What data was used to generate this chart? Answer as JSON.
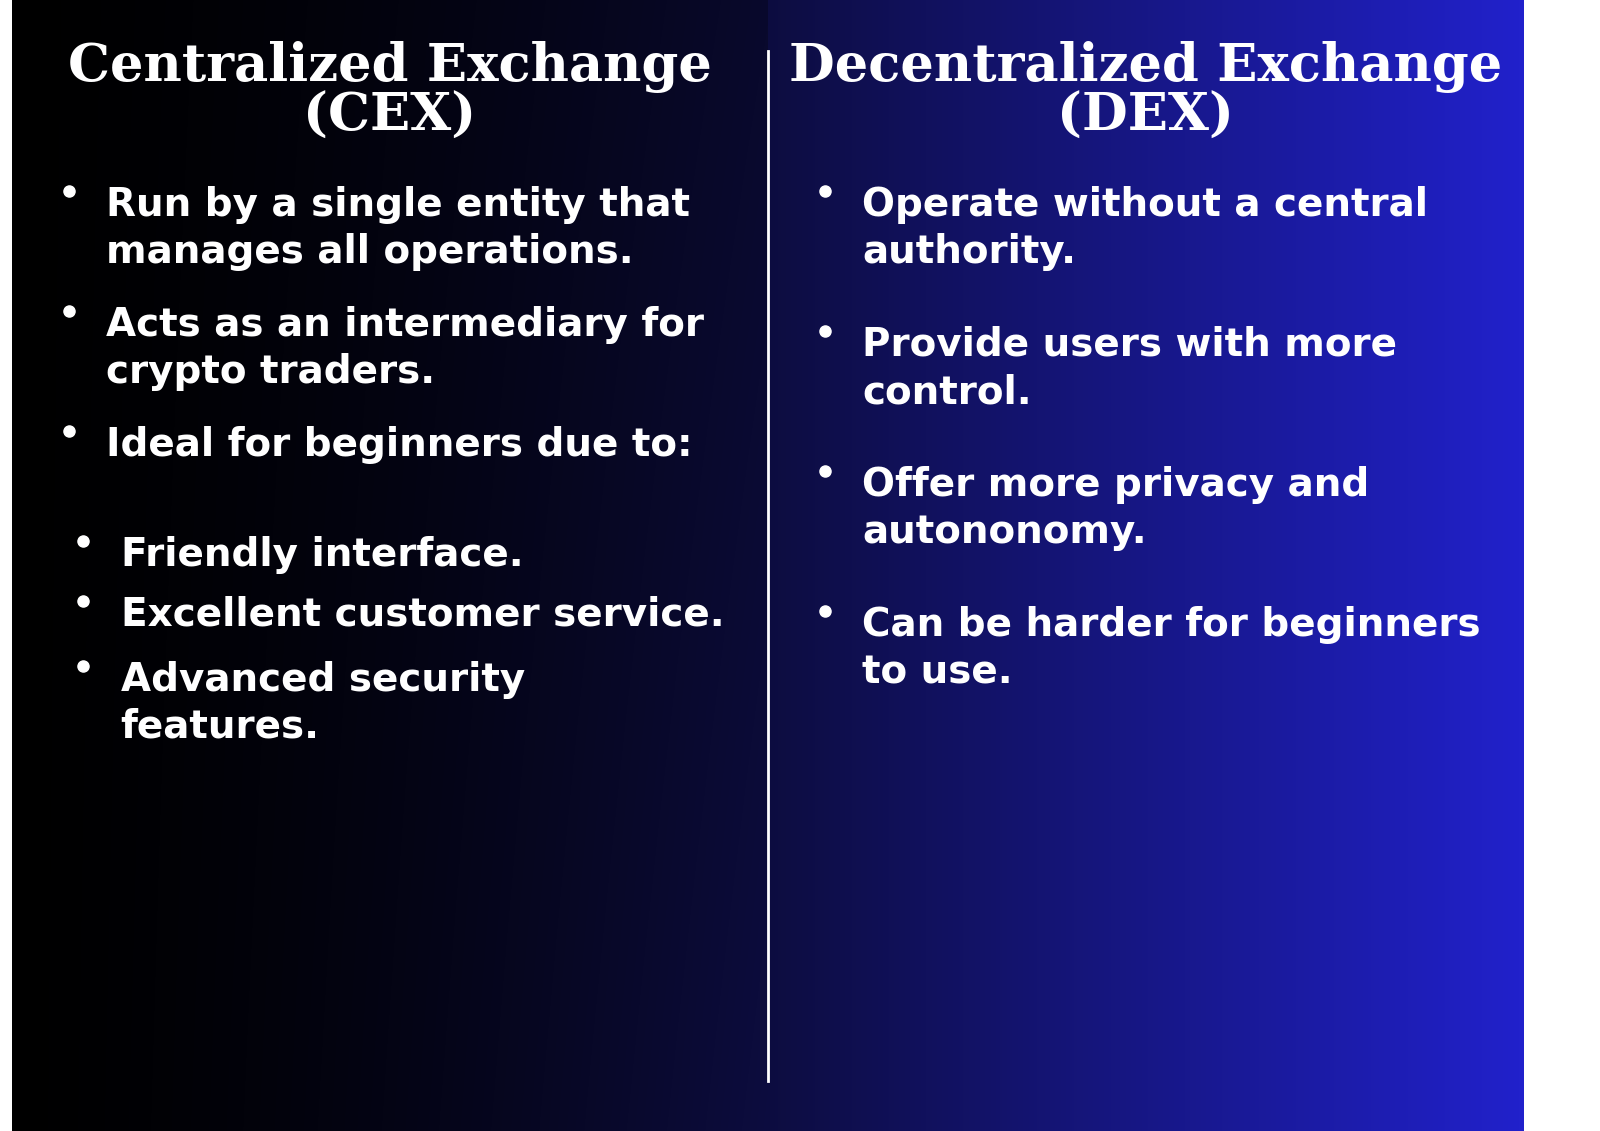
{
  "left_title_line1": "Centralized Exchange",
  "left_title_line2": "(CEX)",
  "right_title_line1": "Decentralized Exchange",
  "right_title_line2": "(DEX)",
  "left_bullets": [
    "Run by a single entity that\nmanages all operations.",
    "Acts as an intermediary for\ncrypto traders.",
    "Ideal for beginners due to:",
    "Friendly interface.",
    "Excellent customer service.",
    "Advanced security\nfeatures."
  ],
  "right_bullets": [
    "Operate without a central\nauthority.",
    "Provide users with more\ncontrol.",
    "Offer more privacy and\nautononomy.",
    "Can be harder for beginners\nto use."
  ],
  "left_bullet_indent": [
    false,
    false,
    false,
    true,
    true,
    true
  ],
  "text_color": "#ffffff",
  "title_fontsize": 38,
  "bullet_fontsize": 28,
  "divider_color": "#ffffff",
  "bg_left_color": "#000000",
  "bg_right_color": "#2222cc"
}
